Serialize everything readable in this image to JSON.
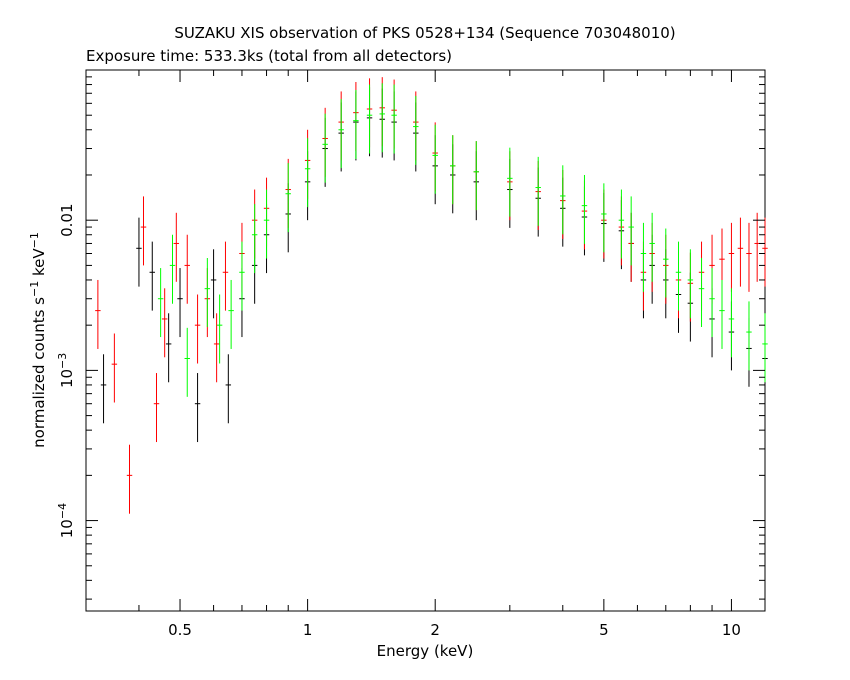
{
  "chart_data": {
    "type": "scatter",
    "title": "SUZAKU XIS observation of PKS 0528+134 (Sequence 703048010)",
    "subtitle": "Exposure time: 533.3ks (total from all detectors)",
    "xlabel": "Energy (keV)",
    "ylabel_main": "normalized counts s",
    "ylabel_sup1": "−1",
    "ylabel_mid": " keV",
    "ylabel_sup2": "−1",
    "x_scale": "log",
    "y_scale": "log",
    "xlim": [
      0.3,
      12.0
    ],
    "ylim": [
      2.5e-05,
      0.1
    ],
    "x_ticks": [
      {
        "value": 0.5,
        "label": "0.5"
      },
      {
        "value": 1,
        "label": "1"
      },
      {
        "value": 2,
        "label": "2"
      },
      {
        "value": 5,
        "label": "5"
      },
      {
        "value": 10,
        "label": "10"
      }
    ],
    "y_ticks": [
      {
        "value": 0.01,
        "label": "0.01",
        "exp": ""
      },
      {
        "value": 0.001,
        "label": "10",
        "exp": "−3"
      },
      {
        "value": 0.0001,
        "label": "10",
        "exp": "−4"
      }
    ],
    "grid": false,
    "legend": "none",
    "series": [
      {
        "color": "#000000",
        "points": [
          [
            0.33,
            0.0008
          ],
          [
            0.4,
            0.0065
          ],
          [
            0.43,
            0.0045
          ],
          [
            0.47,
            0.0015
          ],
          [
            0.5,
            0.003
          ],
          [
            0.55,
            0.0006
          ],
          [
            0.6,
            0.004
          ],
          [
            0.65,
            0.0008
          ],
          [
            0.7,
            0.003
          ],
          [
            0.75,
            0.005
          ],
          [
            0.8,
            0.008
          ],
          [
            0.9,
            0.011
          ],
          [
            1.0,
            0.018
          ],
          [
            1.1,
            0.03
          ],
          [
            1.2,
            0.038
          ],
          [
            1.3,
            0.045
          ],
          [
            1.4,
            0.048
          ],
          [
            1.5,
            0.047
          ],
          [
            1.6,
            0.045
          ],
          [
            1.8,
            0.038
          ],
          [
            2.0,
            0.023
          ],
          [
            2.2,
            0.02
          ],
          [
            2.5,
            0.018
          ],
          [
            3.0,
            0.016
          ],
          [
            3.5,
            0.014
          ],
          [
            4.0,
            0.012
          ],
          [
            4.5,
            0.0105
          ],
          [
            5.0,
            0.0095
          ],
          [
            5.5,
            0.0085
          ],
          [
            5.8,
            0.007
          ],
          [
            6.2,
            0.004
          ],
          [
            6.5,
            0.005
          ],
          [
            7.0,
            0.004
          ],
          [
            7.5,
            0.0032
          ],
          [
            8.0,
            0.0028
          ],
          [
            9.0,
            0.0022
          ],
          [
            10.0,
            0.0018
          ],
          [
            11.0,
            0.0014
          ],
          [
            12.0,
            0.0012
          ]
        ]
      },
      {
        "color": "#ff0000",
        "points": [
          [
            0.32,
            0.0025
          ],
          [
            0.35,
            0.0011
          ],
          [
            0.38,
            0.0002
          ],
          [
            0.41,
            0.009
          ],
          [
            0.44,
            0.0006
          ],
          [
            0.46,
            0.0022
          ],
          [
            0.49,
            0.007
          ],
          [
            0.52,
            0.005
          ],
          [
            0.55,
            0.002
          ],
          [
            0.58,
            0.003
          ],
          [
            0.61,
            0.0015
          ],
          [
            0.64,
            0.0045
          ],
          [
            0.7,
            0.006
          ],
          [
            0.75,
            0.01
          ],
          [
            0.8,
            0.012
          ],
          [
            0.9,
            0.016
          ],
          [
            1.0,
            0.025
          ],
          [
            1.1,
            0.035
          ],
          [
            1.2,
            0.045
          ],
          [
            1.3,
            0.052
          ],
          [
            1.4,
            0.055
          ],
          [
            1.5,
            0.056
          ],
          [
            1.6,
            0.054
          ],
          [
            1.8,
            0.045
          ],
          [
            2.0,
            0.028
          ],
          [
            2.2,
            0.023
          ],
          [
            2.5,
            0.021
          ],
          [
            3.0,
            0.018
          ],
          [
            3.5,
            0.0155
          ],
          [
            4.0,
            0.0135
          ],
          [
            4.5,
            0.0115
          ],
          [
            5.0,
            0.01
          ],
          [
            5.5,
            0.009
          ],
          [
            5.8,
            0.007
          ],
          [
            6.2,
            0.0045
          ],
          [
            6.5,
            0.006
          ],
          [
            7.0,
            0.005
          ],
          [
            7.5,
            0.004
          ],
          [
            8.0,
            0.0038
          ],
          [
            8.5,
            0.0045
          ],
          [
            9.0,
            0.005
          ],
          [
            9.5,
            0.0055
          ],
          [
            10.0,
            0.006
          ],
          [
            10.5,
            0.0065
          ],
          [
            11.0,
            0.006
          ],
          [
            11.5,
            0.007
          ],
          [
            12.0,
            0.0065
          ]
        ]
      },
      {
        "color": "#00ff00",
        "points": [
          [
            0.45,
            0.003
          ],
          [
            0.48,
            0.005
          ],
          [
            0.52,
            0.0012
          ],
          [
            0.58,
            0.0035
          ],
          [
            0.62,
            0.002
          ],
          [
            0.66,
            0.0025
          ],
          [
            0.7,
            0.0045
          ],
          [
            0.75,
            0.008
          ],
          [
            0.8,
            0.01
          ],
          [
            0.9,
            0.015
          ],
          [
            1.0,
            0.022
          ],
          [
            1.1,
            0.032
          ],
          [
            1.2,
            0.04
          ],
          [
            1.3,
            0.046
          ],
          [
            1.4,
            0.05
          ],
          [
            1.5,
            0.051
          ],
          [
            1.6,
            0.05
          ],
          [
            1.8,
            0.042
          ],
          [
            2.0,
            0.027
          ],
          [
            2.2,
            0.023
          ],
          [
            2.5,
            0.021
          ],
          [
            3.0,
            0.019
          ],
          [
            3.5,
            0.0165
          ],
          [
            4.0,
            0.0145
          ],
          [
            4.5,
            0.0125
          ],
          [
            5.0,
            0.011
          ],
          [
            5.5,
            0.01
          ],
          [
            5.8,
            0.009
          ],
          [
            6.2,
            0.006
          ],
          [
            6.5,
            0.007
          ],
          [
            7.0,
            0.0055
          ],
          [
            7.5,
            0.0045
          ],
          [
            8.0,
            0.004
          ],
          [
            8.5,
            0.0035
          ],
          [
            9.0,
            0.003
          ],
          [
            9.5,
            0.0025
          ],
          [
            10.0,
            0.0022
          ],
          [
            11.0,
            0.0018
          ],
          [
            12.0,
            0.0015
          ]
        ]
      }
    ]
  }
}
